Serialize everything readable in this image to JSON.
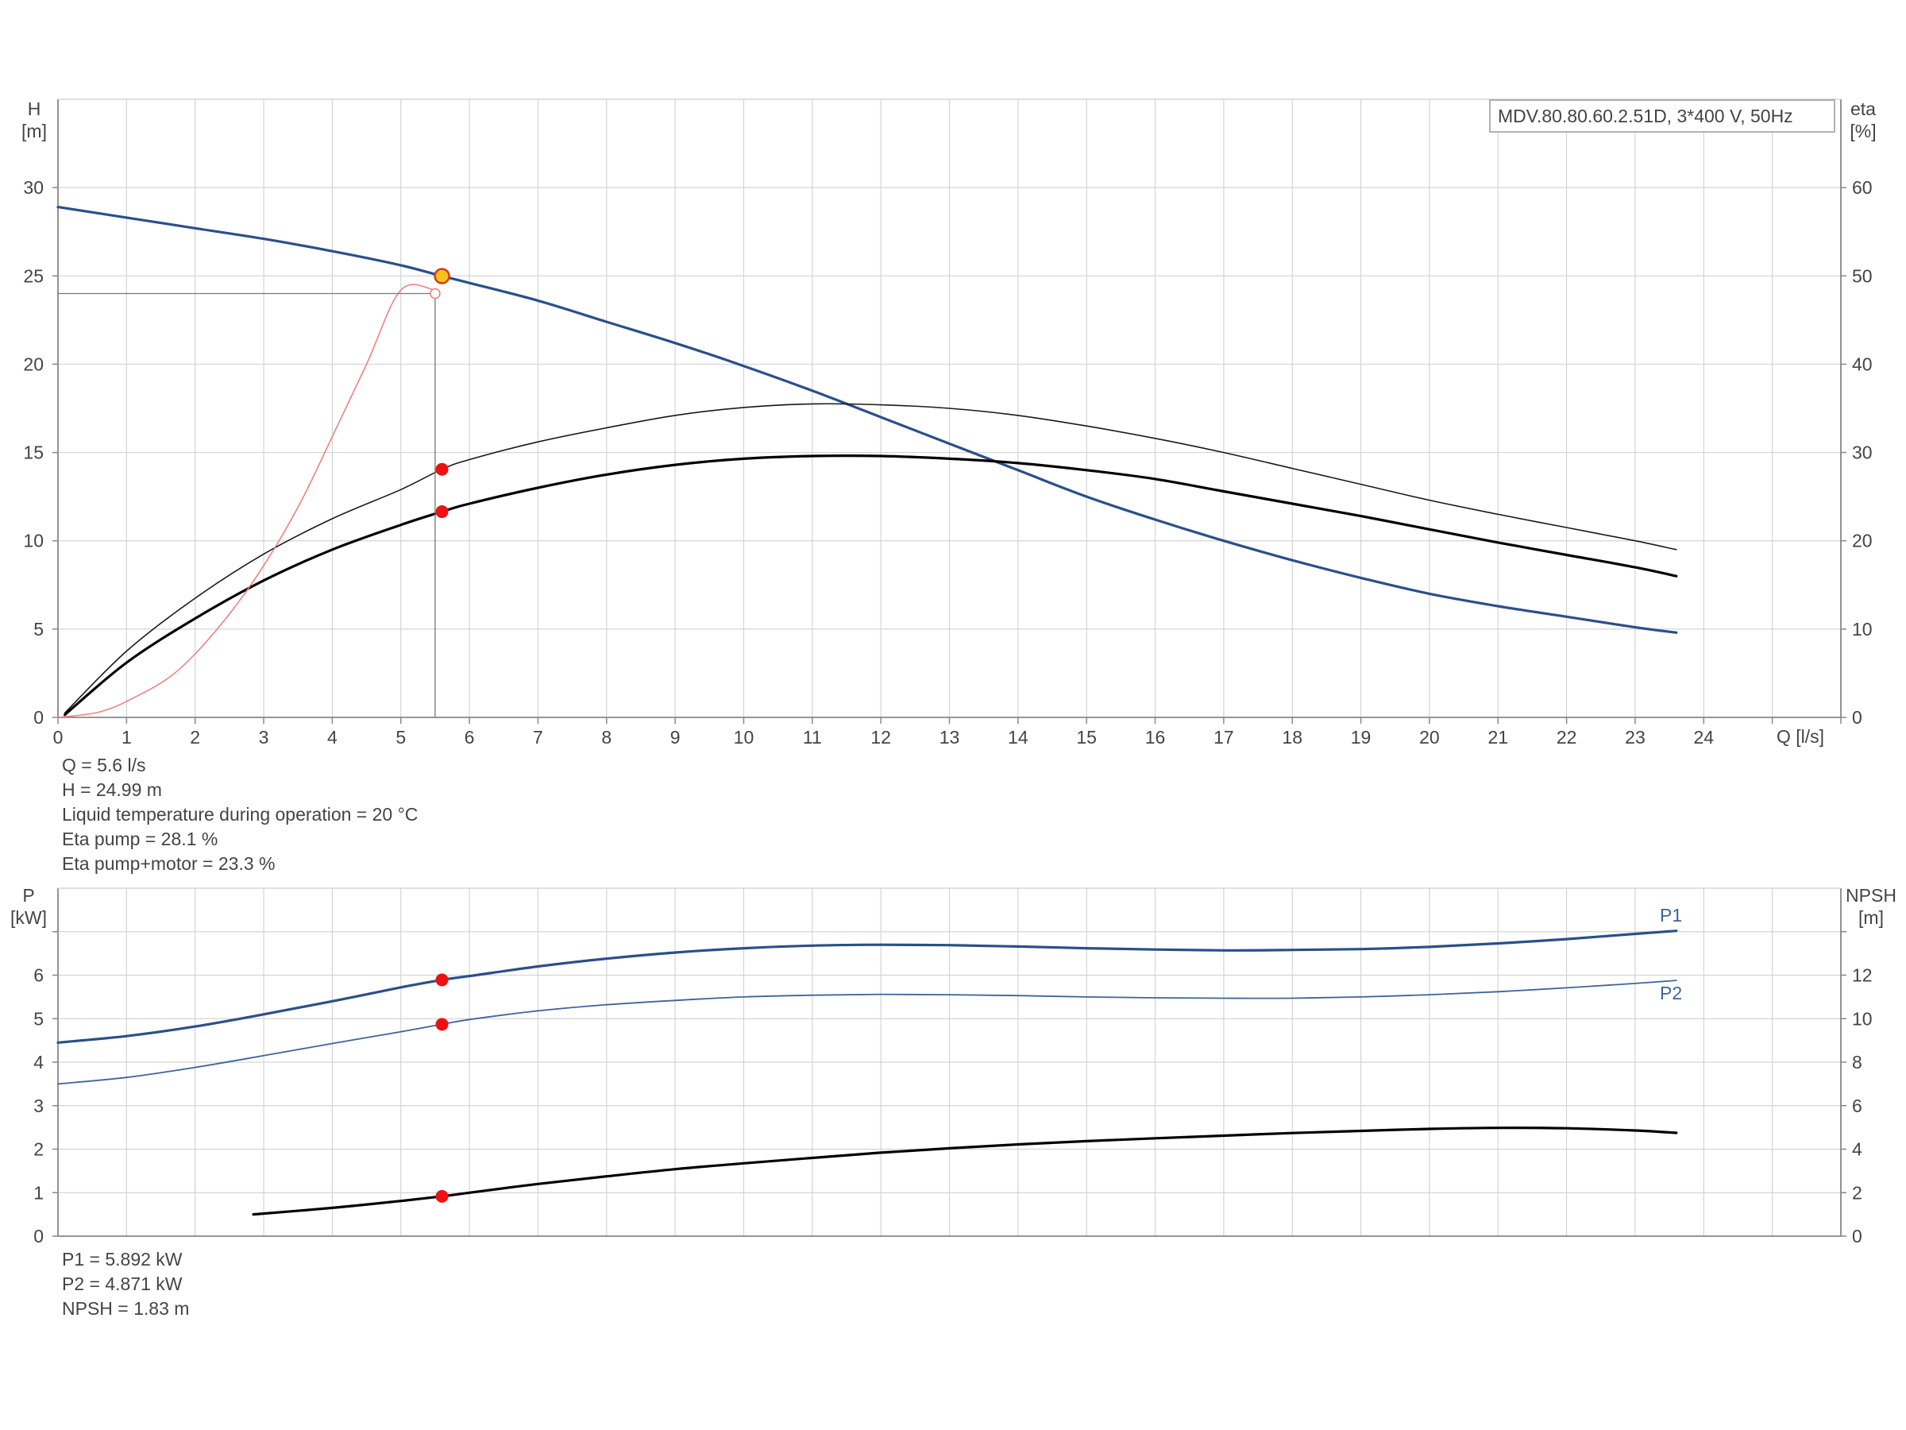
{
  "chart_data": [
    {
      "type": "line",
      "legend_box": "MDV.80.80.60.2.51D, 3*400 V, 50Hz",
      "xlabel": "Q [l/s]",
      "x_ticks": [
        "0",
        "1",
        "2",
        "3",
        "4",
        "5",
        "6",
        "7",
        "8",
        "9",
        "10",
        "11",
        "12",
        "13",
        "14",
        "15",
        "16",
        "17",
        "18",
        "19",
        "20",
        "21",
        "22",
        "23",
        "24"
      ],
      "xlim": [
        0,
        26
      ],
      "ylabel_left_line1": "H",
      "ylabel_left_line2": "[m]",
      "ylabel_right_line1": "eta",
      "ylabel_right_line2": "[%]",
      "ylim_left": [
        0,
        35
      ],
      "ylim_right": [
        0,
        70
      ],
      "y_ticks_left": [
        "0",
        "5",
        "10",
        "15",
        "20",
        "25",
        "30"
      ],
      "y_ticks_right": [
        "0",
        "10",
        "20",
        "30",
        "40",
        "50",
        "60"
      ],
      "grid": true,
      "series": [
        {
          "axis": "left",
          "color": "#2a4f8a",
          "width": 3.2,
          "x": [
            0,
            1,
            2,
            3,
            4,
            5,
            5.6,
            6,
            7,
            8,
            9,
            10,
            11,
            12,
            13,
            14,
            15,
            16,
            17,
            18,
            19,
            20,
            21,
            22,
            23,
            23.6
          ],
          "values": [
            28.9,
            28.3,
            27.7,
            27.1,
            26.4,
            25.6,
            24.99,
            24.6,
            23.6,
            22.4,
            21.2,
            19.9,
            18.5,
            17.0,
            15.5,
            14.0,
            12.5,
            11.2,
            10.0,
            8.9,
            7.9,
            7.0,
            6.3,
            5.7,
            5.1,
            4.8
          ]
        },
        {
          "axis": "right",
          "color": "#1a1a1a",
          "width": 1.6,
          "x": [
            0.1,
            1,
            2,
            3,
            4,
            5,
            5.6,
            6,
            7,
            8,
            9,
            10,
            11,
            12,
            13,
            14,
            15,
            16,
            17,
            18,
            19,
            20,
            21,
            22,
            23,
            23.6
          ],
          "values": [
            0.5,
            7.5,
            13.5,
            18.5,
            22.5,
            25.8,
            28.1,
            29.2,
            31.2,
            32.8,
            34.2,
            35.1,
            35.5,
            35.4,
            35.0,
            34.2,
            33.0,
            31.6,
            30.0,
            28.2,
            26.4,
            24.6,
            23.0,
            21.5,
            20.0,
            19.0
          ]
        },
        {
          "axis": "right",
          "color": "#000000",
          "width": 3.2,
          "x": [
            0.1,
            1,
            2,
            3,
            4,
            5,
            5.6,
            6,
            7,
            8,
            9,
            10,
            11,
            12,
            13,
            14,
            15,
            16,
            17,
            18,
            19,
            20,
            21,
            22,
            23,
            23.6
          ],
          "values": [
            0.3,
            6.2,
            11.2,
            15.5,
            19.0,
            21.8,
            23.3,
            24.2,
            26.0,
            27.5,
            28.6,
            29.3,
            29.6,
            29.6,
            29.3,
            28.8,
            28.0,
            27.0,
            25.6,
            24.2,
            22.8,
            21.3,
            19.8,
            18.4,
            17.0,
            16.0
          ]
        },
        {
          "axis": "left",
          "color": "#f07a7a",
          "width": 1.5,
          "x": [
            0,
            0.6,
            1.1,
            1.7,
            2.3,
            2.9,
            3.5,
            4.0,
            4.5,
            5.0,
            5.5
          ],
          "values": [
            0,
            0.3,
            1.1,
            2.5,
            4.9,
            8.0,
            11.9,
            15.9,
            20.0,
            24.2,
            24.2
          ]
        }
      ],
      "operating_point": {
        "x": 5.6,
        "h": 24.99,
        "eta_pump": 28.1,
        "eta_total": 23.3,
        "h_system": 24.0
      },
      "readouts": [
        "Q = 5.6 l/s",
        "H = 24.99 m",
        "Liquid temperature during operation = 20 °C",
        "Eta pump = 28.1 %",
        "Eta pump+motor = 23.3 %"
      ]
    },
    {
      "type": "line",
      "xlim": [
        0,
        26
      ],
      "ylabel_left_line1": "P",
      "ylabel_left_line2": "[kW]",
      "ylabel_right_line1": "NPSH",
      "ylabel_right_line2": "[m]",
      "ylim_left": [
        0,
        8
      ],
      "ylim_right": [
        0,
        16
      ],
      "y_ticks_left": [
        "0",
        "1",
        "2",
        "3",
        "4",
        "5",
        "6"
      ],
      "y_ticks_right": [
        "0",
        "2",
        "4",
        "6",
        "8",
        "10",
        "12"
      ],
      "grid": true,
      "series": [
        {
          "name": "P1",
          "axis": "left",
          "color": "#2a4f8a",
          "width": 3.2,
          "x": [
            0,
            1,
            2,
            3,
            4,
            5,
            5.6,
            6,
            7,
            8,
            9,
            10,
            11,
            12,
            13,
            14,
            15,
            16,
            17,
            18,
            19,
            20,
            21,
            22,
            23,
            23.6
          ],
          "values": [
            4.45,
            4.6,
            4.82,
            5.1,
            5.4,
            5.72,
            5.892,
            5.98,
            6.2,
            6.38,
            6.52,
            6.62,
            6.68,
            6.7,
            6.69,
            6.66,
            6.62,
            6.59,
            6.57,
            6.58,
            6.6,
            6.65,
            6.73,
            6.83,
            6.95,
            7.02
          ]
        },
        {
          "name": "P2",
          "axis": "left",
          "color": "#3e6499",
          "width": 1.8,
          "x": [
            0,
            1,
            2,
            3,
            4,
            5,
            5.6,
            6,
            7,
            8,
            9,
            10,
            11,
            12,
            13,
            14,
            15,
            16,
            17,
            18,
            19,
            20,
            21,
            22,
            23,
            23.6
          ],
          "values": [
            3.5,
            3.65,
            3.88,
            4.15,
            4.43,
            4.7,
            4.871,
            4.98,
            5.18,
            5.32,
            5.42,
            5.5,
            5.54,
            5.56,
            5.55,
            5.53,
            5.5,
            5.48,
            5.47,
            5.47,
            5.5,
            5.55,
            5.62,
            5.71,
            5.81,
            5.88
          ]
        },
        {
          "name": "NPSH",
          "axis": "right",
          "color": "#000000",
          "width": 3.2,
          "x": [
            2.85,
            4,
            5,
            5.6,
            6,
            7,
            8,
            9,
            10,
            11,
            12,
            13,
            14,
            15,
            16,
            17,
            18,
            19,
            20,
            21,
            22,
            23,
            23.6
          ],
          "values": [
            1.0,
            1.3,
            1.62,
            1.83,
            2.0,
            2.4,
            2.75,
            3.08,
            3.35,
            3.6,
            3.84,
            4.04,
            4.22,
            4.37,
            4.5,
            4.62,
            4.74,
            4.84,
            4.93,
            4.98,
            4.96,
            4.86,
            4.75
          ]
        }
      ],
      "operating_point": {
        "x": 5.6,
        "p1": 5.892,
        "p2": 4.871,
        "npsh": 1.83
      },
      "readouts": [
        "P1 = 5.892 kW",
        "P2 = 4.871 kW",
        "NPSH = 1.83 m"
      ]
    }
  ],
  "colors": {
    "grid": "#d4d4d4",
    "axis": "#888888",
    "text": "#444444",
    "marker": "#ee1111",
    "op_point": "#f6c21a"
  }
}
